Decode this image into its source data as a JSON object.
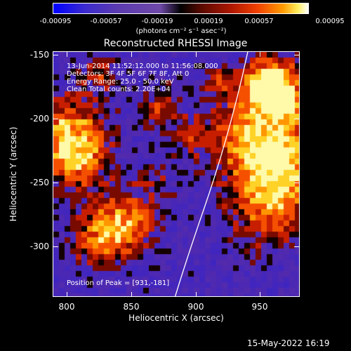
{
  "colorbar": {
    "tick_labels": [
      "-0.00095",
      "-0.00057",
      "-0.00019",
      "0.00019",
      "0.00057",
      "0.00095"
    ],
    "unit_label": "(photons cm⁻² s⁻¹ asec⁻²)"
  },
  "title": "Reconstructed RHESSI Image",
  "info": {
    "time": "13-Jun-2014 11:52:12.000 to 11:56:08.000",
    "detectors": "Detectors: 3F 4F 5F 6F 7F 8F, Att 0",
    "energy": "Energy Range: 25.0 - 50.0 keV",
    "clean": "Clean     Total counts: 2.20E+04",
    "peak": "Position of Peak = [931,-181]"
  },
  "axes": {
    "x_label": "Heliocentric X (arcsec)",
    "y_label": "Heliocentric Y (arcsec)",
    "x_ticks": [
      "800",
      "850",
      "900",
      "950"
    ],
    "y_ticks": [
      "-150",
      "-200",
      "-250",
      "-300"
    ],
    "x_range": [
      789,
      982
    ],
    "y_range": [
      -339,
      -147
    ]
  },
  "timestamp": "15-May-2022 16:19"
}
